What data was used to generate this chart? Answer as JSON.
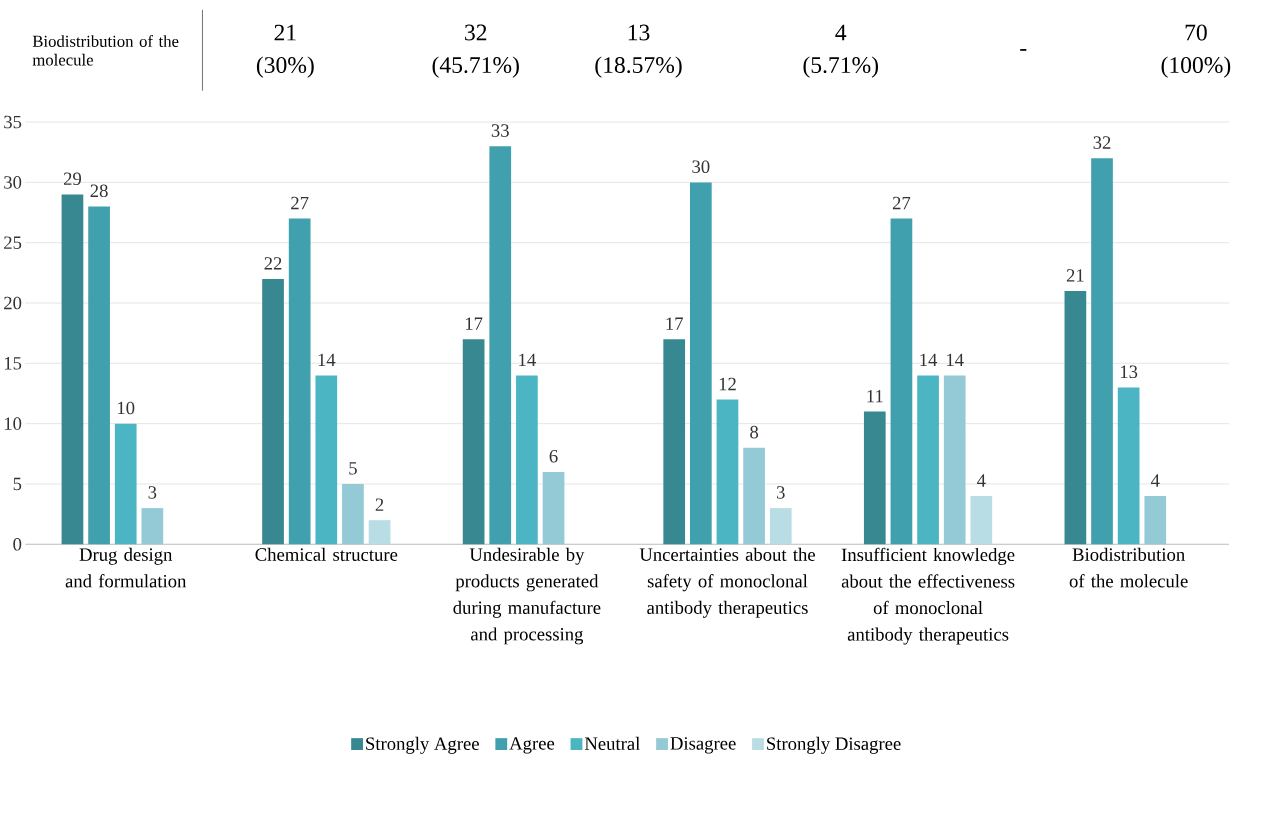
{
  "chart_data": {
    "type": "bar",
    "categories": [
      "Drug design and formulation",
      "Chemical structure",
      "Undesirable by products generated during manufacture and processing",
      "Uncertainties about the safety of monoclonal antibody therapeutics",
      "Insufficient knowledge about the effectiveness of monoclonal antibody therapeutics",
      "Biodistribution of the molecule"
    ],
    "series": [
      {
        "name": "Strongly Agree",
        "color": "#378891",
        "values": [
          29,
          22,
          17,
          17,
          11,
          21
        ]
      },
      {
        "name": "Agree",
        "color": "#41a0ae",
        "values": [
          28,
          27,
          33,
          30,
          27,
          32
        ]
      },
      {
        "name": "Neutral",
        "color": "#4bb5c4",
        "values": [
          10,
          14,
          14,
          12,
          14,
          13
        ]
      },
      {
        "name": "Disagree",
        "color": "#94cad5",
        "values": [
          3,
          5,
          6,
          8,
          14,
          4
        ]
      },
      {
        "name": "Strongly Disagree",
        "color": "#b9dde4",
        "values": [
          null,
          2,
          null,
          3,
          4,
          null
        ]
      }
    ],
    "ylim": [
      0,
      35
    ],
    "yticks": [
      0,
      5,
      10,
      15,
      20,
      25,
      30,
      35
    ],
    "grid": "y",
    "legend": "bottom",
    "data_labels": true,
    "annotations": [
      "Biodistribution of the molecule",
      "21",
      "(30%)",
      "32",
      "(45.71%)",
      "13",
      "(18.57%)",
      "4",
      "(5.71%)",
      "-",
      "70",
      "(100%)"
    ]
  }
}
